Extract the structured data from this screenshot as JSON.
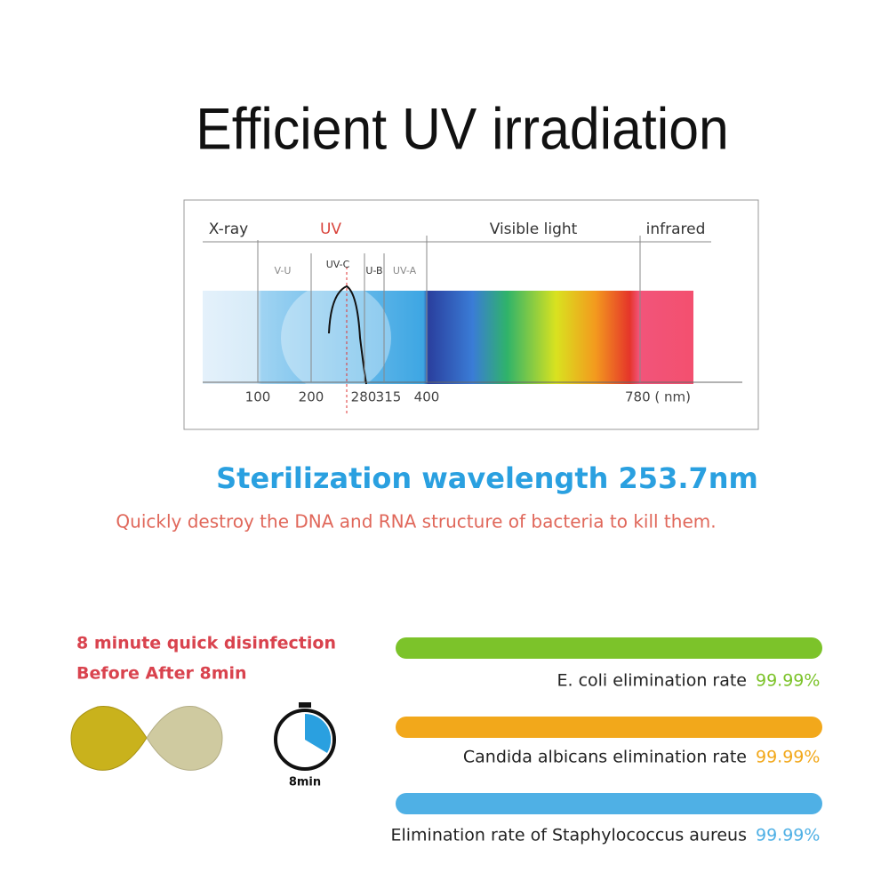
{
  "header": {
    "title": "Efficient UV irradiation"
  },
  "spectrum": {
    "regions": [
      "X-ray",
      "UV",
      "Visible light",
      "infrared"
    ],
    "subregions": [
      "V-U",
      "UV-C",
      "U-B",
      "UV-A"
    ],
    "ticks": [
      "100",
      "200",
      "280",
      "315",
      "400",
      "780 ( nm)"
    ]
  },
  "headline": "Sterilization wavelength 253.7nm",
  "subtitle": "Quickly destroy the DNA and RNA structure of bacteria to kill them.",
  "disinfection": {
    "lines": [
      "8 minute quick disinfection",
      "Before After 8min"
    ],
    "timer_label": "8min"
  },
  "rates": [
    {
      "label": "E. coli elimination rate",
      "value": "99.99%"
    },
    {
      "label": "Candida albicans elimination rate",
      "value": "99.99%"
    },
    {
      "label": "Elimination rate of Staphylococcus aureus",
      "value": "99.99%"
    }
  ]
}
